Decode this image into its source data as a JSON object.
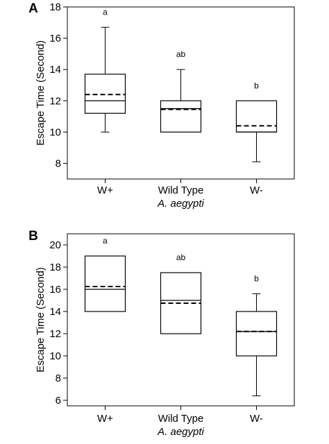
{
  "figure": {
    "panels": [
      {
        "letter": "A"
      },
      {
        "letter": "B"
      }
    ]
  },
  "chart_data": [
    {
      "type": "box",
      "panel": "A",
      "title": "",
      "ylabel": "Escape Time (Second)",
      "xlabel": "A. aegypti",
      "ylim": [
        7,
        18
      ],
      "yticks": [
        8,
        10,
        12,
        14,
        16,
        18
      ],
      "grid": false,
      "categories": [
        "W+",
        "Wild Type",
        "W-"
      ],
      "boxes": [
        {
          "category": "W+",
          "whisker_low": 10,
          "q1": 11.2,
          "median": 12.0,
          "mean": 12.4,
          "q3": 13.7,
          "whisker_high": 16.7,
          "significance": "a"
        },
        {
          "category": "Wild Type",
          "whisker_low": 10,
          "q1": 10,
          "median": 11.5,
          "mean": 11.45,
          "q3": 12.0,
          "whisker_high": 14.0,
          "significance": "ab"
        },
        {
          "category": "W-",
          "whisker_low": 8.1,
          "q1": 10,
          "median": 10.0,
          "mean": 10.4,
          "q3": 12.0,
          "whisker_high": 12.0,
          "significance": "b"
        }
      ]
    },
    {
      "type": "box",
      "panel": "B",
      "title": "",
      "ylabel": "Escape Time (Second)",
      "xlabel": "A. aegypti",
      "ylim": [
        5.5,
        21
      ],
      "yticks": [
        6,
        8,
        10,
        12,
        14,
        16,
        18,
        20
      ],
      "grid": false,
      "categories": [
        "W+",
        "Wild Type",
        "W-"
      ],
      "boxes": [
        {
          "category": "W+",
          "whisker_low": 14,
          "q1": 14,
          "median": 16.0,
          "mean": 16.25,
          "q3": 19.0,
          "whisker_high": 19.0,
          "significance": "a"
        },
        {
          "category": "Wild Type",
          "whisker_low": 12,
          "q1": 12,
          "median": 15.0,
          "mean": 14.75,
          "q3": 17.5,
          "whisker_high": 17.5,
          "significance": "ab"
        },
        {
          "category": "W-",
          "whisker_low": 6.4,
          "q1": 10,
          "median": 12.2,
          "mean": 12.2,
          "q3": 14.0,
          "whisker_high": 15.6,
          "significance": "b"
        }
      ]
    }
  ]
}
